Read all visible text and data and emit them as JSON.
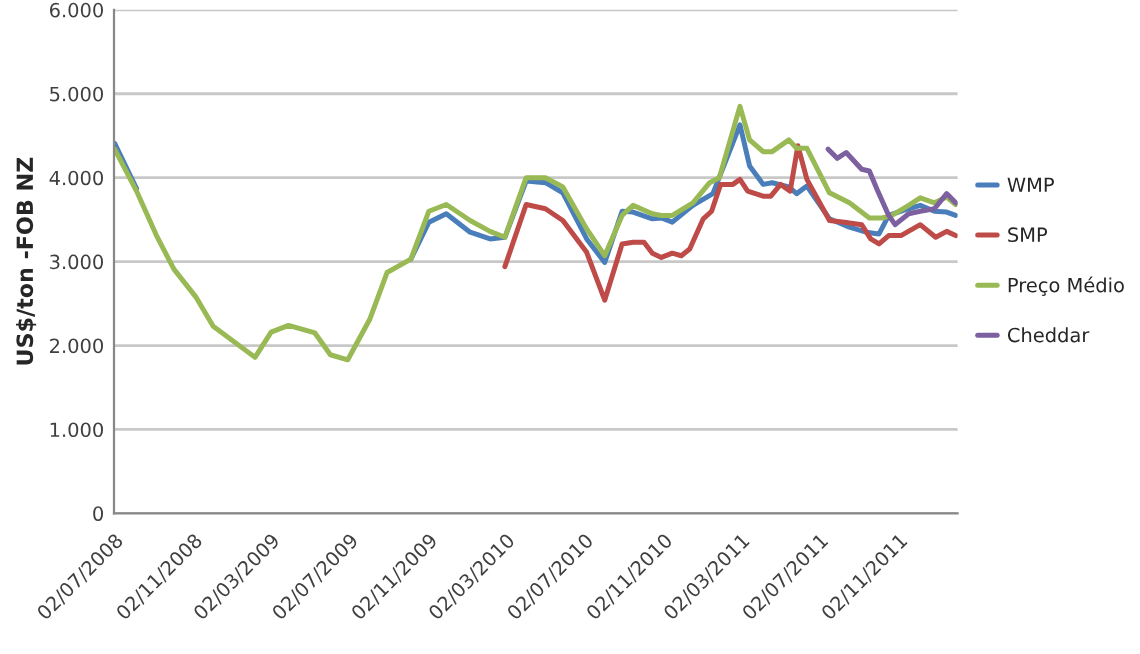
{
  "chart_data": {
    "type": "line",
    "ylabel": "US$/ton -FOB NZ",
    "xlim": [
      "2008-07-02",
      "2012-02-02"
    ],
    "xticks": [
      {
        "value": "2008-07-02",
        "label": "02/07/2008"
      },
      {
        "value": "2008-11-02",
        "label": "02/11/2008"
      },
      {
        "value": "2009-03-02",
        "label": "02/03/2009"
      },
      {
        "value": "2009-07-02",
        "label": "02/07/2009"
      },
      {
        "value": "2009-11-02",
        "label": "02/11/2009"
      },
      {
        "value": "2010-03-02",
        "label": "02/03/2010"
      },
      {
        "value": "2010-07-02",
        "label": "02/07/2010"
      },
      {
        "value": "2010-11-02",
        "label": "02/11/2010"
      },
      {
        "value": "2011-03-02",
        "label": "02/03/2011"
      },
      {
        "value": "2011-07-02",
        "label": "02/07/2011"
      },
      {
        "value": "2011-11-02",
        "label": "02/11/2011"
      }
    ],
    "ylim": [
      0,
      6000
    ],
    "yticks": [
      {
        "value": 0,
        "label": "0"
      },
      {
        "value": 1000,
        "label": "1.000"
      },
      {
        "value": 2000,
        "label": "2.000"
      },
      {
        "value": 3000,
        "label": "3.000"
      },
      {
        "value": 4000,
        "label": "4.000"
      },
      {
        "value": 5000,
        "label": "5.000"
      },
      {
        "value": 6000,
        "label": "6.000"
      }
    ],
    "grid": "y",
    "legend": "right",
    "marker": "none",
    "line_style": "solid",
    "series": [
      {
        "name": "WMP",
        "color": "#4a7ebb",
        "x": [
          "2008-07-03",
          "2008-08-06",
          "2009-01-01",
          "2009-10-06",
          "2009-11-03",
          "2009-11-30",
          "2010-01-06",
          "2010-02-06",
          "2010-03-01",
          "2010-04-03",
          "2010-05-03",
          "2010-05-30",
          "2010-07-06",
          "2010-08-03",
          "2010-08-30",
          "2010-09-16",
          "2010-10-16",
          "2010-10-30",
          "2010-11-16",
          "2010-12-18",
          "2011-01-18",
          "2011-03-01",
          "2011-03-16",
          "2011-04-06",
          "2011-04-20",
          "2011-05-16",
          "2011-05-28",
          "2011-06-13",
          "2011-07-18",
          "2011-08-18",
          "2011-09-13",
          "2011-10-03",
          "2011-10-18",
          "2011-11-18",
          "2011-12-06",
          "2011-12-28",
          "2012-01-16",
          "2012-01-30"
        ],
        "values": [
          4410,
          3870,
          null,
          3030,
          3470,
          3570,
          3350,
          3270,
          3290,
          3960,
          3940,
          3820,
          3270,
          2990,
          3600,
          3590,
          3510,
          3520,
          3470,
          3670,
          3810,
          4630,
          4140,
          3920,
          3940,
          3890,
          3810,
          3900,
          3510,
          3410,
          3350,
          3330,
          3550,
          3630,
          3670,
          3600,
          3590,
          3550
        ]
      },
      {
        "name": "SMP",
        "color": "#be4b48",
        "x": [
          "2010-03-01",
          "2010-04-03",
          "2010-05-03",
          "2010-05-30",
          "2010-07-06",
          "2010-08-03",
          "2010-08-30",
          "2010-09-16",
          "2010-10-03",
          "2010-10-16",
          "2010-10-30",
          "2010-11-16",
          "2010-11-30",
          "2010-12-13",
          "2011-01-03",
          "2011-01-16",
          "2011-01-30",
          "2011-02-18",
          "2011-03-01",
          "2011-03-13",
          "2011-04-06",
          "2011-04-18",
          "2011-05-03",
          "2011-05-18",
          "2011-05-30",
          "2011-06-13",
          "2011-07-18",
          "2011-08-10",
          "2011-09-06",
          "2011-09-20",
          "2011-10-03",
          "2011-10-18",
          "2011-11-06",
          "2011-12-06",
          "2011-12-30",
          "2012-01-16",
          "2012-01-30"
        ],
        "values": [
          2940,
          3680,
          3630,
          3490,
          3110,
          2540,
          3210,
          3230,
          3230,
          3100,
          3050,
          3100,
          3070,
          3150,
          3510,
          3600,
          3920,
          3920,
          3980,
          3840,
          3780,
          3780,
          3920,
          3840,
          4380,
          3980,
          3490,
          3470,
          3440,
          3270,
          3210,
          3310,
          3310,
          3440,
          3290,
          3360,
          3310
        ]
      },
      {
        "name": "Preço Médio",
        "color": "#98b954",
        "x": [
          "2008-07-03",
          "2008-08-06",
          "2008-09-06",
          "2008-10-03",
          "2008-11-06",
          "2008-12-03",
          "2009-02-06",
          "2009-03-03",
          "2009-03-30",
          "2009-05-10",
          "2009-06-03",
          "2009-06-30",
          "2009-08-03",
          "2009-08-30",
          "2009-10-06",
          "2009-11-03",
          "2009-11-30",
          "2010-01-06",
          "2010-02-06",
          "2010-03-01",
          "2010-04-03",
          "2010-05-03",
          "2010-05-30",
          "2010-07-06",
          "2010-08-03",
          "2010-08-30",
          "2010-09-16",
          "2010-10-16",
          "2010-10-30",
          "2010-11-16",
          "2010-12-18",
          "2011-01-13",
          "2011-01-28",
          "2011-03-01",
          "2011-03-16",
          "2011-04-06",
          "2011-04-20",
          "2011-05-16",
          "2011-05-28",
          "2011-06-13",
          "2011-07-18",
          "2011-08-18",
          "2011-09-18",
          "2011-10-08",
          "2011-10-23",
          "2011-11-18",
          "2011-12-06",
          "2011-12-28",
          "2012-01-16",
          "2012-01-30"
        ],
        "values": [
          4340,
          3840,
          3310,
          2910,
          2580,
          2230,
          1860,
          2160,
          2240,
          2150,
          1890,
          1830,
          2310,
          2870,
          3030,
          3600,
          3680,
          3490,
          3360,
          3290,
          4000,
          4000,
          3890,
          3390,
          3070,
          3550,
          3670,
          3570,
          3550,
          3550,
          3700,
          3940,
          4000,
          4850,
          4450,
          4310,
          4310,
          4450,
          4350,
          4350,
          3820,
          3700,
          3520,
          3520,
          3550,
          3670,
          3760,
          3700,
          3770,
          3680
        ]
      },
      {
        "name": "Cheddar",
        "color": "#7d60a0",
        "x": [
          "2011-07-16",
          "2011-07-30",
          "2011-08-13",
          "2011-09-06",
          "2011-09-18",
          "2011-09-30",
          "2011-10-18",
          "2011-10-28",
          "2011-11-18",
          "2011-12-06",
          "2011-12-28",
          "2012-01-16",
          "2012-01-30"
        ],
        "values": [
          4340,
          4230,
          4300,
          4100,
          4080,
          3860,
          3550,
          3440,
          3570,
          3600,
          3630,
          3810,
          3700
        ]
      }
    ]
  }
}
